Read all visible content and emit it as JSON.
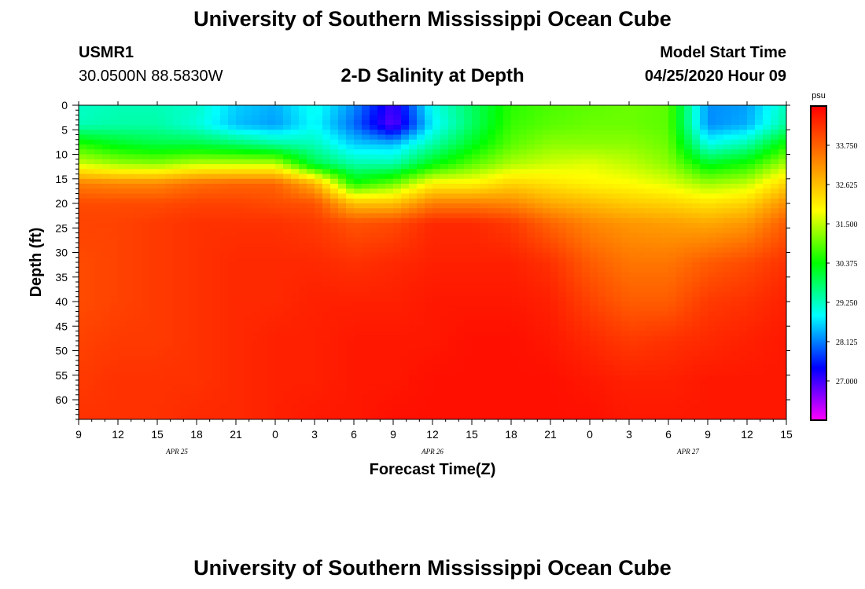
{
  "page": {
    "title_top": "University of Southern Mississippi Ocean Cube",
    "title_bottom": "University of Southern Mississippi Ocean Cube",
    "station_id": "USMR1",
    "station_coords": "30.0500N 88.5830W",
    "start_label": "Model Start Time",
    "start_value": "04/25/2020 Hour 09"
  },
  "colors": {
    "ramp": [
      "#ff00ff",
      "#8000ff",
      "#0000ff",
      "#0080ff",
      "#00ffff",
      "#00ff80",
      "#00ff00",
      "#80ff00",
      "#ffff00",
      "#ffc000",
      "#ff8000",
      "#ff4000",
      "#ff0000"
    ]
  },
  "chart_data": {
    "type": "heatmap",
    "title": "2-D Salinity at Depth",
    "xlabel": "Forecast Time(Z)",
    "ylabel": "Depth (ft)",
    "x_tick_labels": [
      "9",
      "12",
      "15",
      "18",
      "21",
      "0",
      "3",
      "6",
      "9",
      "12",
      "15",
      "18",
      "21",
      "0",
      "3",
      "6",
      "9",
      "12",
      "15"
    ],
    "x_hours_from_start": [
      0,
      3,
      6,
      9,
      12,
      15,
      18,
      21,
      24,
      27,
      30,
      33,
      36,
      39,
      42,
      45,
      48,
      51,
      54
    ],
    "xlim": [
      0,
      54
    ],
    "day_labels": [
      {
        "label": "APR 25",
        "hour": 7.5
      },
      {
        "label": "APR 26",
        "hour": 27
      },
      {
        "label": "APR 27",
        "hour": 46.5
      }
    ],
    "y_tick_labels": [
      "0",
      "5",
      "10",
      "15",
      "20",
      "25",
      "30",
      "35",
      "40",
      "45",
      "50",
      "55",
      "60"
    ],
    "y_ticks": [
      0,
      5,
      10,
      15,
      20,
      25,
      30,
      35,
      40,
      45,
      50,
      55,
      60
    ],
    "ylim": [
      0,
      64
    ],
    "colorbar": {
      "unit": "psu",
      "range": [
        25.875,
        34.875
      ],
      "tick_labels": [
        "33.750",
        "32.625",
        "31.500",
        "30.375",
        "29.250",
        "28.125",
        "27.000"
      ],
      "tick_values": [
        33.75,
        32.625,
        31.5,
        30.375,
        29.25,
        28.125,
        27.0
      ]
    },
    "grid": {
      "hours": [
        0,
        3,
        6,
        9,
        12,
        15,
        18,
        21,
        24,
        27,
        30,
        33,
        36,
        39,
        42,
        45,
        48,
        51,
        54
      ],
      "depths": [
        0,
        4,
        8,
        12,
        16,
        20,
        24,
        32,
        40,
        48,
        56,
        64
      ],
      "salinity": [
        [
          29.2,
          29.3,
          29.3,
          29.2,
          28.6,
          28.4,
          29.0,
          28.2,
          27.0,
          29.0,
          29.8,
          30.6,
          30.8,
          30.9,
          31.0,
          30.9,
          28.2,
          28.3,
          29.3
        ],
        [
          29.3,
          29.4,
          29.4,
          29.1,
          28.5,
          28.3,
          28.9,
          28.0,
          26.8,
          28.8,
          29.8,
          30.7,
          30.9,
          31.0,
          31.0,
          30.9,
          28.2,
          28.4,
          29.5
        ],
        [
          30.6,
          30.2,
          30.0,
          30.0,
          29.8,
          29.5,
          29.3,
          28.6,
          28.5,
          29.4,
          30.2,
          30.9,
          31.2,
          31.2,
          31.2,
          31.0,
          29.0,
          29.4,
          30.5
        ],
        [
          31.6,
          31.3,
          31.2,
          31.5,
          31.5,
          31.5,
          30.0,
          29.4,
          29.4,
          30.3,
          30.9,
          31.4,
          31.6,
          31.7,
          31.5,
          31.2,
          30.2,
          30.5,
          31.4
        ],
        [
          33.4,
          33.3,
          33.3,
          33.6,
          33.7,
          33.7,
          32.8,
          30.5,
          31.0,
          32.0,
          32.0,
          32.4,
          32.2,
          32.0,
          31.9,
          31.7,
          31.3,
          31.5,
          32.4
        ],
        [
          34.0,
          34.0,
          34.0,
          34.1,
          34.1,
          34.0,
          33.9,
          32.6,
          32.6,
          33.4,
          33.4,
          33.3,
          32.9,
          32.7,
          32.5,
          32.4,
          32.2,
          32.4,
          33.2
        ],
        [
          34.1,
          34.1,
          34.2,
          34.3,
          34.3,
          34.3,
          34.2,
          33.9,
          34.0,
          34.4,
          34.4,
          34.2,
          33.7,
          33.3,
          33.1,
          33.0,
          32.9,
          33.1,
          33.8
        ],
        [
          34.0,
          34.1,
          34.2,
          34.3,
          34.4,
          34.4,
          34.4,
          34.3,
          34.4,
          34.5,
          34.5,
          34.5,
          34.3,
          33.8,
          33.5,
          33.5,
          33.8,
          34.0,
          34.3
        ],
        [
          34.0,
          34.1,
          34.2,
          34.3,
          34.4,
          34.4,
          34.5,
          34.5,
          34.5,
          34.6,
          34.6,
          34.6,
          34.5,
          34.1,
          33.8,
          33.8,
          34.2,
          34.3,
          34.5
        ],
        [
          34.1,
          34.2,
          34.2,
          34.3,
          34.4,
          34.5,
          34.5,
          34.6,
          34.6,
          34.6,
          34.7,
          34.7,
          34.6,
          34.4,
          34.2,
          34.3,
          34.4,
          34.5,
          34.6
        ],
        [
          34.2,
          34.3,
          34.3,
          34.3,
          34.4,
          34.5,
          34.5,
          34.6,
          34.6,
          34.7,
          34.7,
          34.7,
          34.7,
          34.6,
          34.5,
          34.5,
          34.6,
          34.6,
          34.6
        ],
        [
          34.3,
          34.3,
          34.3,
          34.4,
          34.4,
          34.5,
          34.6,
          34.6,
          34.7,
          34.7,
          34.7,
          34.7,
          34.7,
          34.7,
          34.6,
          34.6,
          34.6,
          34.6,
          34.6
        ]
      ]
    }
  }
}
